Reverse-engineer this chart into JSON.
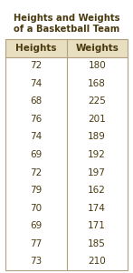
{
  "title_line1": "Heights and Weights",
  "title_line2": "of a Basketball Team",
  "col_headers": [
    "Heights",
    "Weights"
  ],
  "rows": [
    [
      72,
      180
    ],
    [
      74,
      168
    ],
    [
      68,
      225
    ],
    [
      76,
      201
    ],
    [
      74,
      189
    ],
    [
      69,
      192
    ],
    [
      72,
      197
    ],
    [
      79,
      162
    ],
    [
      70,
      174
    ],
    [
      69,
      171
    ],
    [
      77,
      185
    ],
    [
      73,
      210
    ]
  ],
  "header_bg": "#e8dfc0",
  "table_border_color": "#b0a080",
  "title_color": "#4a3a10",
  "header_text_color": "#4a3a10",
  "data_text_color": "#4a3a10",
  "bg_color": "#ffffff",
  "title_fontsize": 7.2,
  "header_fontsize": 7.5,
  "data_fontsize": 7.5
}
